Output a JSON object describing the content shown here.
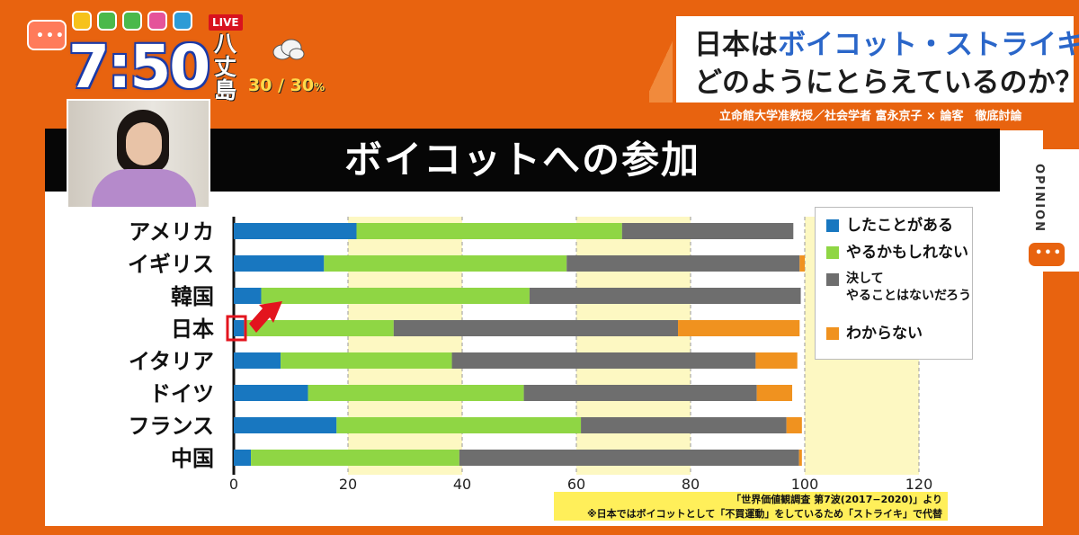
{
  "status": {
    "live_label": "LIVE",
    "time": "7:50",
    "location": "八丈島",
    "weather_icon": "cloud-icon",
    "temperature": "30 / 30",
    "temperature_unit": "%"
  },
  "headline": {
    "line1_prefix": "日本は",
    "line1_highlight": "ボイコット・ストライキ",
    "line1_suffix": "を",
    "line2": "どのようにとらえているのか？",
    "caption": "立命館大学准教授／社会学者 富永京子 × 論客　徹底討論"
  },
  "side_tab": {
    "label": "OPINION"
  },
  "colors": {
    "done": "#1877c0",
    "might": "#8fd644",
    "never": "#6e6e6e",
    "unknown": "#f0921f",
    "highlight_band": "#fdf8c2",
    "accent": "#e8630f"
  },
  "chart_data": {
    "type": "bar",
    "orientation": "horizontal",
    "stacked": true,
    "title": "ボイコットへの参加",
    "categories": [
      "アメリカ",
      "イギリス",
      "韓国",
      "日本",
      "イタリア",
      "ドイツ",
      "フランス",
      "中国"
    ],
    "series": [
      {
        "name": "したことがある",
        "values": [
          21.5,
          15.8,
          4.8,
          1.8,
          8.2,
          13.0,
          18.0,
          3.0
        ]
      },
      {
        "name": "やるかもしれない",
        "values": [
          46.5,
          42.5,
          47.0,
          26.2,
          30.0,
          37.8,
          42.8,
          36.5
        ]
      },
      {
        "name": "決して\nやることはないだろう",
        "values": [
          30.0,
          40.8,
          47.5,
          49.8,
          53.2,
          40.8,
          36.0,
          59.5
        ]
      },
      {
        "name": "わからない",
        "values": [
          0.0,
          0.9,
          0.0,
          21.3,
          7.3,
          6.2,
          2.7,
          0.5
        ]
      }
    ],
    "x_ticks": [
      0,
      20,
      40,
      60,
      80,
      100,
      120
    ],
    "xlim": [
      0,
      120
    ],
    "grid": "vertical dashed",
    "legend_position": "right",
    "annotation": "red box and arrow on 日本 したことがある",
    "source": "「世界価値観調査 第7波(2017−2020)」より",
    "note": "※日本ではボイコットとして「不買運動」をしているため「ストライキ」で代替"
  }
}
